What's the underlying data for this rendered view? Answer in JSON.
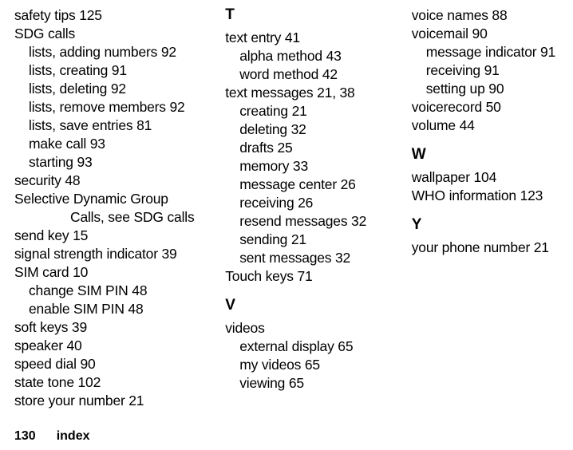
{
  "footer": {
    "page_number": "130",
    "label": "index"
  },
  "columns": {
    "c1": {
      "entries": [
        {
          "text": "safety tips  125",
          "indent": 0
        },
        {
          "text": "SDG calls",
          "indent": 0
        },
        {
          "text": "lists, adding numbers  92",
          "indent": 1
        },
        {
          "text": "lists, creating  91",
          "indent": 1
        },
        {
          "text": "lists, deleting  92",
          "indent": 1
        },
        {
          "text": "lists, remove members  92",
          "indent": 1
        },
        {
          "text": "lists, save entries  81",
          "indent": 1
        },
        {
          "text": "make call  93",
          "indent": 1
        },
        {
          "text": "starting  93",
          "indent": 1
        },
        {
          "text": "security  48",
          "indent": 0
        },
        {
          "text": "Selective Dynamic Group",
          "indent": 0
        },
        {
          "text": "Calls, see SDG calls",
          "indent": 2
        },
        {
          "text": "send key  15",
          "indent": 0
        },
        {
          "text": "signal strength indicator  39",
          "indent": 0
        },
        {
          "text": "SIM card  10",
          "indent": 0
        },
        {
          "text": "change SIM PIN  48",
          "indent": 1
        },
        {
          "text": "enable SIM PIN  48",
          "indent": 1
        },
        {
          "text": "soft keys  39",
          "indent": 0
        },
        {
          "text": "speaker  40",
          "indent": 0
        },
        {
          "text": "speed dial  90",
          "indent": 0
        },
        {
          "text": "state tone  102",
          "indent": 0
        },
        {
          "text": "store your number  21",
          "indent": 0
        }
      ]
    },
    "c2": {
      "sections": [
        {
          "letter": "T",
          "entries": [
            {
              "text": "text entry  41",
              "indent": 0
            },
            {
              "text": "alpha method  43",
              "indent": 1
            },
            {
              "text": "word method  42",
              "indent": 1
            },
            {
              "text": "text messages  21, 38",
              "indent": 0
            },
            {
              "text": "creating  21",
              "indent": 1
            },
            {
              "text": "deleting  32",
              "indent": 1
            },
            {
              "text": "drafts  25",
              "indent": 1
            },
            {
              "text": "memory  33",
              "indent": 1
            },
            {
              "text": "message center  26",
              "indent": 1
            },
            {
              "text": "receiving  26",
              "indent": 1
            },
            {
              "text": "resend messages  32",
              "indent": 1
            },
            {
              "text": "sending  21",
              "indent": 1
            },
            {
              "text": "sent messages  32",
              "indent": 1
            },
            {
              "text": "Touch keys  71",
              "indent": 0
            }
          ]
        },
        {
          "letter": "V",
          "entries": [
            {
              "text": "videos",
              "indent": 0
            },
            {
              "text": "external display  65",
              "indent": 1
            },
            {
              "text": "my videos  65",
              "indent": 1
            },
            {
              "text": "viewing  65",
              "indent": 1
            }
          ]
        }
      ]
    },
    "c3": {
      "top_entries": [
        {
          "text": "voice names  88",
          "indent": 0
        },
        {
          "text": "voicemail  90",
          "indent": 0
        },
        {
          "text": "message indicator  91",
          "indent": 1
        },
        {
          "text": "receiving  91",
          "indent": 1
        },
        {
          "text": "setting up  90",
          "indent": 1
        },
        {
          "text": "voicerecord  50",
          "indent": 0
        },
        {
          "text": "volume  44",
          "indent": 0
        }
      ],
      "sections": [
        {
          "letter": "W",
          "entries": [
            {
              "text": "wallpaper  104",
              "indent": 0
            },
            {
              "text": "WHO information  123",
              "indent": 0
            }
          ]
        },
        {
          "letter": "Y",
          "entries": [
            {
              "text": "your phone number  21",
              "indent": 0
            }
          ]
        }
      ]
    }
  }
}
